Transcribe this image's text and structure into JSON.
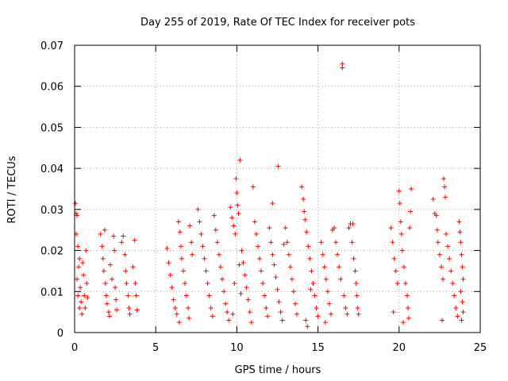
{
  "chart_data": {
    "type": "scatter",
    "title": "Day 255 of 2019, Rate Of TEC Index for receiver pots",
    "xlabel": "GPS time / hours",
    "ylabel": "ROTI / TECUs",
    "xlim": [
      0,
      25
    ],
    "ylim": [
      0,
      0.07
    ],
    "xticks": [
      0,
      5,
      10,
      15,
      20,
      25
    ],
    "yticks": [
      0,
      0.01,
      0.02,
      0.03,
      0.04,
      0.05,
      0.06,
      0.07
    ],
    "xtick_labels": [
      "0",
      "5",
      "10",
      "15",
      "20",
      "25"
    ],
    "ytick_labels": [
      "0",
      "0.01",
      "0.02",
      "0.03",
      "0.04",
      "0.05",
      "0.06",
      "0.07"
    ],
    "grid": true,
    "marker": "+",
    "color": "#ff0000",
    "series": [
      {
        "name": "ROTI",
        "points": [
          [
            0.05,
            0.0315
          ],
          [
            0.1,
            0.029
          ],
          [
            0.15,
            0.0285
          ],
          [
            0.1,
            0.024
          ],
          [
            0.2,
            0.021
          ],
          [
            0.3,
            0.018
          ],
          [
            0.25,
            0.016
          ],
          [
            0.15,
            0.013
          ],
          [
            0.35,
            0.011
          ],
          [
            0.2,
            0.009
          ],
          [
            0.4,
            0.0075
          ],
          [
            0.3,
            0.006
          ],
          [
            0.45,
            0.0045
          ],
          [
            0.5,
            0.017
          ],
          [
            0.55,
            0.014
          ],
          [
            0.6,
            0.009
          ],
          [
            0.65,
            0.006
          ],
          [
            0.7,
            0.02
          ],
          [
            0.75,
            0.012
          ],
          [
            0.8,
            0.0085
          ],
          [
            1.6,
            0.024
          ],
          [
            1.7,
            0.021
          ],
          [
            1.75,
            0.018
          ],
          [
            1.8,
            0.015
          ],
          [
            1.9,
            0.012
          ],
          [
            1.95,
            0.009
          ],
          [
            2.0,
            0.007
          ],
          [
            2.1,
            0.005
          ],
          [
            2.15,
            0.004
          ],
          [
            1.85,
            0.025
          ],
          [
            2.2,
            0.0165
          ],
          [
            2.3,
            0.013
          ],
          [
            2.4,
            0.0235
          ],
          [
            2.45,
            0.02
          ],
          [
            2.5,
            0.011
          ],
          [
            2.55,
            0.008
          ],
          [
            2.6,
            0.0055
          ],
          [
            2.9,
            0.022
          ],
          [
            3.0,
            0.0235
          ],
          [
            3.1,
            0.019
          ],
          [
            3.15,
            0.015
          ],
          [
            3.2,
            0.012
          ],
          [
            3.3,
            0.009
          ],
          [
            3.35,
            0.006
          ],
          [
            3.4,
            0.0045
          ],
          [
            3.6,
            0.016
          ],
          [
            3.7,
            0.0225
          ],
          [
            3.75,
            0.012
          ],
          [
            3.8,
            0.009
          ],
          [
            3.85,
            0.0055
          ],
          [
            5.7,
            0.0205
          ],
          [
            5.8,
            0.017
          ],
          [
            5.9,
            0.014
          ],
          [
            6.0,
            0.011
          ],
          [
            6.1,
            0.008
          ],
          [
            6.2,
            0.006
          ],
          [
            6.3,
            0.0045
          ],
          [
            6.4,
            0.027
          ],
          [
            6.5,
            0.0245
          ],
          [
            6.55,
            0.021
          ],
          [
            6.6,
            0.018
          ],
          [
            6.7,
            0.015
          ],
          [
            6.8,
            0.012
          ],
          [
            6.9,
            0.009
          ],
          [
            7.0,
            0.006
          ],
          [
            7.05,
            0.0035
          ],
          [
            7.1,
            0.026
          ],
          [
            7.2,
            0.022
          ],
          [
            7.25,
            0.019
          ],
          [
            6.45,
            0.0025
          ],
          [
            7.6,
            0.03
          ],
          [
            7.7,
            0.027
          ],
          [
            7.8,
            0.024
          ],
          [
            7.9,
            0.021
          ],
          [
            8.0,
            0.018
          ],
          [
            8.1,
            0.015
          ],
          [
            8.2,
            0.012
          ],
          [
            8.3,
            0.009
          ],
          [
            8.4,
            0.006
          ],
          [
            8.5,
            0.004
          ],
          [
            8.6,
            0.0285
          ],
          [
            8.7,
            0.025
          ],
          [
            8.8,
            0.022
          ],
          [
            8.9,
            0.019
          ],
          [
            9.0,
            0.016
          ],
          [
            9.1,
            0.013
          ],
          [
            9.2,
            0.01
          ],
          [
            9.3,
            0.007
          ],
          [
            9.4,
            0.005
          ],
          [
            9.5,
            0.003
          ],
          [
            9.6,
            0.0305
          ],
          [
            9.7,
            0.028
          ],
          [
            9.8,
            0.026
          ],
          [
            9.9,
            0.024
          ],
          [
            9.95,
            0.0375
          ],
          [
            10.0,
            0.034
          ],
          [
            10.05,
            0.031
          ],
          [
            10.1,
            0.029
          ],
          [
            10.2,
            0.042
          ],
          [
            10.3,
            0.02
          ],
          [
            10.4,
            0.017
          ],
          [
            10.5,
            0.014
          ],
          [
            10.6,
            0.011
          ],
          [
            10.7,
            0.008
          ],
          [
            10.8,
            0.005
          ],
          [
            10.9,
            0.0025
          ],
          [
            9.75,
            0.0045
          ],
          [
            9.85,
            0.012
          ],
          [
            10.15,
            0.0165
          ],
          [
            10.25,
            0.0095
          ],
          [
            11.0,
            0.0355
          ],
          [
            11.1,
            0.027
          ],
          [
            11.2,
            0.024
          ],
          [
            11.3,
            0.021
          ],
          [
            11.4,
            0.018
          ],
          [
            11.5,
            0.015
          ],
          [
            11.6,
            0.012
          ],
          [
            11.7,
            0.009
          ],
          [
            11.8,
            0.006
          ],
          [
            11.9,
            0.004
          ],
          [
            12.0,
            0.0255
          ],
          [
            12.1,
            0.022
          ],
          [
            12.2,
            0.019
          ],
          [
            12.3,
            0.0165
          ],
          [
            12.4,
            0.0135
          ],
          [
            12.5,
            0.0105
          ],
          [
            12.6,
            0.0075
          ],
          [
            12.7,
            0.005
          ],
          [
            12.8,
            0.003
          ],
          [
            12.9,
            0.0215
          ],
          [
            12.55,
            0.0405
          ],
          [
            13.0,
            0.0255
          ],
          [
            13.1,
            0.022
          ],
          [
            13.2,
            0.019
          ],
          [
            13.3,
            0.016
          ],
          [
            13.4,
            0.013
          ],
          [
            13.5,
            0.01
          ],
          [
            13.6,
            0.007
          ],
          [
            13.7,
            0.0045
          ],
          [
            12.2,
            0.0315
          ],
          [
            14.0,
            0.0355
          ],
          [
            14.1,
            0.0325
          ],
          [
            14.15,
            0.0295
          ],
          [
            14.2,
            0.0275
          ],
          [
            14.3,
            0.0245
          ],
          [
            14.4,
            0.021
          ],
          [
            14.5,
            0.018
          ],
          [
            14.6,
            0.015
          ],
          [
            14.7,
            0.012
          ],
          [
            14.8,
            0.009
          ],
          [
            14.9,
            0.006
          ],
          [
            15.0,
            0.004
          ],
          [
            14.25,
            0.003
          ],
          [
            14.35,
            0.0015
          ],
          [
            14.55,
            0.0105
          ],
          [
            15.2,
            0.022
          ],
          [
            15.3,
            0.019
          ],
          [
            15.4,
            0.016
          ],
          [
            15.5,
            0.013
          ],
          [
            15.6,
            0.01
          ],
          [
            15.7,
            0.007
          ],
          [
            15.8,
            0.0045
          ],
          [
            15.9,
            0.025
          ],
          [
            16.0,
            0.0255
          ],
          [
            16.1,
            0.022
          ],
          [
            16.2,
            0.019
          ],
          [
            16.3,
            0.016
          ],
          [
            16.4,
            0.013
          ],
          [
            16.5,
            0.0655
          ],
          [
            16.5,
            0.0645
          ],
          [
            16.6,
            0.009
          ],
          [
            16.7,
            0.006
          ],
          [
            16.8,
            0.0045
          ],
          [
            15.45,
            0.0025
          ],
          [
            16.9,
            0.0255
          ],
          [
            17.0,
            0.0265
          ],
          [
            17.1,
            0.022
          ],
          [
            17.2,
            0.018
          ],
          [
            17.3,
            0.015
          ],
          [
            17.35,
            0.012
          ],
          [
            17.4,
            0.009
          ],
          [
            17.45,
            0.006
          ],
          [
            17.5,
            0.0045
          ],
          [
            17.15,
            0.0265
          ],
          [
            19.5,
            0.0255
          ],
          [
            19.6,
            0.022
          ],
          [
            19.7,
            0.018
          ],
          [
            19.8,
            0.015
          ],
          [
            19.9,
            0.012
          ],
          [
            20.0,
            0.0345
          ],
          [
            20.05,
            0.0315
          ],
          [
            20.1,
            0.027
          ],
          [
            20.15,
            0.024
          ],
          [
            20.2,
            0.02
          ],
          [
            20.3,
            0.016
          ],
          [
            20.4,
            0.012
          ],
          [
            20.5,
            0.009
          ],
          [
            20.55,
            0.006
          ],
          [
            20.6,
            0.0035
          ],
          [
            20.65,
            0.0255
          ],
          [
            20.7,
            0.0295
          ],
          [
            20.75,
            0.035
          ],
          [
            19.65,
            0.005
          ],
          [
            20.25,
            0.0025
          ],
          [
            22.1,
            0.0325
          ],
          [
            22.2,
            0.029
          ],
          [
            22.3,
            0.0285
          ],
          [
            22.35,
            0.025
          ],
          [
            22.4,
            0.022
          ],
          [
            22.5,
            0.019
          ],
          [
            22.6,
            0.016
          ],
          [
            22.7,
            0.013
          ],
          [
            22.75,
            0.0375
          ],
          [
            22.8,
            0.0355
          ],
          [
            22.85,
            0.033
          ],
          [
            22.9,
            0.024
          ],
          [
            23.0,
            0.021
          ],
          [
            23.1,
            0.018
          ],
          [
            23.2,
            0.015
          ],
          [
            23.3,
            0.012
          ],
          [
            23.4,
            0.009
          ],
          [
            23.5,
            0.006
          ],
          [
            23.6,
            0.004
          ],
          [
            22.65,
            0.003
          ],
          [
            23.7,
            0.027
          ],
          [
            23.75,
            0.0245
          ],
          [
            23.8,
            0.022
          ],
          [
            23.85,
            0.019
          ],
          [
            23.9,
            0.016
          ],
          [
            23.95,
            0.013
          ],
          [
            23.8,
            0.01
          ],
          [
            23.9,
            0.0075
          ],
          [
            23.95,
            0.005
          ],
          [
            23.85,
            0.003
          ]
        ]
      }
    ]
  }
}
